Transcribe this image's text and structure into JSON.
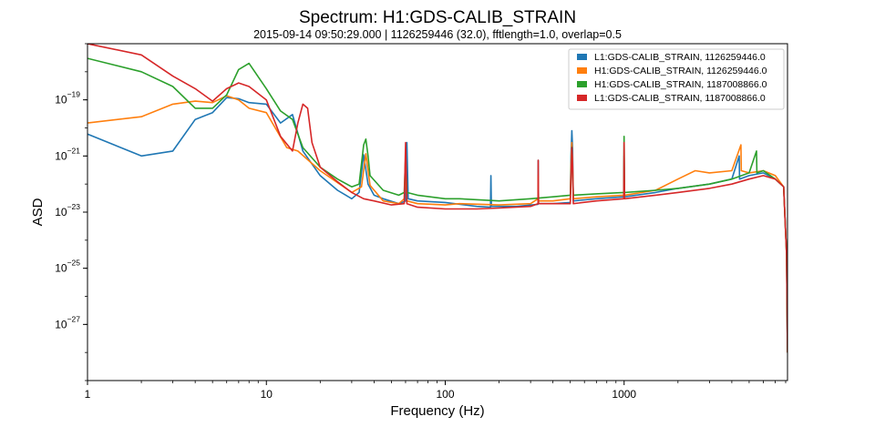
{
  "chart_data": {
    "type": "line",
    "title": "Spectrum: H1:GDS-CALIB_STRAIN",
    "subtitle": "2015-09-14 09:50:29.000 | 1126259446 (32.0), fftlength=1.0, overlap=0.5",
    "xlabel": "Frequency (Hz)",
    "ylabel": "ASD",
    "xscale": "log",
    "yscale": "log",
    "xlim": [
      1,
      8192
    ],
    "ylim": [
      1e-29,
      1e-17
    ],
    "x_ticks": [
      {
        "value": 1,
        "label": "1"
      },
      {
        "value": 10,
        "label": "10"
      },
      {
        "value": 100,
        "label": "100"
      },
      {
        "value": 1000,
        "label": "1000"
      }
    ],
    "y_ticks": [
      {
        "value": 1e-19,
        "base": "10",
        "exp": "−19"
      },
      {
        "value": 1e-21,
        "base": "10",
        "exp": "−21"
      },
      {
        "value": 1e-23,
        "base": "10",
        "exp": "−23"
      },
      {
        "value": 1e-25,
        "base": "10",
        "exp": "−25"
      },
      {
        "value": 1e-27,
        "base": "10",
        "exp": "−27"
      }
    ],
    "legend_position": "top-right",
    "grid": false,
    "series": [
      {
        "name": "L1:GDS-CALIB_STRAIN, 1126259446.0",
        "color": "#1f77b4",
        "points": [
          [
            1,
            6e-21
          ],
          [
            2,
            1e-21
          ],
          [
            3,
            1.5e-21
          ],
          [
            4,
            2e-20
          ],
          [
            5,
            3.5e-20
          ],
          [
            6,
            1.2e-19
          ],
          [
            7,
            1.1e-19
          ],
          [
            8,
            8e-20
          ],
          [
            10,
            7e-20
          ],
          [
            12,
            1.5e-20
          ],
          [
            14,
            3e-20
          ],
          [
            16,
            1.5e-21
          ],
          [
            20,
            2e-22
          ],
          [
            25,
            6e-23
          ],
          [
            30,
            3e-23
          ],
          [
            33,
            5e-23
          ],
          [
            35,
            1.1e-21
          ],
          [
            37,
            1e-22
          ],
          [
            40,
            4e-23
          ],
          [
            45,
            3e-23
          ],
          [
            55,
            2e-23
          ],
          [
            60,
            2.5e-23
          ],
          [
            61,
            3e-21
          ],
          [
            62,
            3e-23
          ],
          [
            70,
            2.5e-23
          ],
          [
            100,
            2.2e-23
          ],
          [
            150,
            1.6e-23
          ],
          [
            179,
            1.5e-23
          ],
          [
            180,
            2e-22
          ],
          [
            181,
            1.6e-23
          ],
          [
            250,
            1.6e-23
          ],
          [
            330,
            1.9e-23
          ],
          [
            331,
            7e-22
          ],
          [
            332,
            2e-23
          ],
          [
            400,
            2e-23
          ],
          [
            500,
            2.2e-23
          ],
          [
            505,
            1e-21
          ],
          [
            510,
            8e-21
          ],
          [
            515,
            2e-21
          ],
          [
            520,
            2.5e-23
          ],
          [
            700,
            3e-23
          ],
          [
            995,
            3.5e-23
          ],
          [
            1000,
            1e-21
          ],
          [
            1005,
            3.5e-23
          ],
          [
            1500,
            5e-23
          ],
          [
            2000,
            7e-23
          ],
          [
            3000,
            1e-22
          ],
          [
            4000,
            1.5e-22
          ],
          [
            4400,
            1e-21
          ],
          [
            4420,
            1.5e-22
          ],
          [
            5000,
            2e-22
          ],
          [
            6000,
            2.5e-22
          ],
          [
            7000,
            1.5e-22
          ],
          [
            7800,
            8e-23
          ],
          [
            8100,
            3e-25
          ],
          [
            8192,
            1e-28
          ]
        ]
      },
      {
        "name": "H1:GDS-CALIB_STRAIN, 1126259446.0",
        "color": "#ff7f0e",
        "points": [
          [
            1,
            1.5e-20
          ],
          [
            2,
            2.5e-20
          ],
          [
            3,
            7e-20
          ],
          [
            4,
            9e-20
          ],
          [
            5,
            8e-20
          ],
          [
            6,
            1.4e-19
          ],
          [
            7,
            1e-19
          ],
          [
            8,
            5e-20
          ],
          [
            10,
            3.5e-20
          ],
          [
            13,
            2e-21
          ],
          [
            15,
            1.5e-21
          ],
          [
            20,
            3e-22
          ],
          [
            30,
            5e-23
          ],
          [
            34,
            8e-23
          ],
          [
            36,
            1.2e-21
          ],
          [
            38,
            9e-23
          ],
          [
            45,
            2.5e-23
          ],
          [
            55,
            2e-23
          ],
          [
            59,
            3e-23
          ],
          [
            60,
            5e-22
          ],
          [
            61,
            2.5e-23
          ],
          [
            70,
            2e-23
          ],
          [
            100,
            1.8e-23
          ],
          [
            120,
            2e-23
          ],
          [
            200,
            1.8e-23
          ],
          [
            300,
            2e-23
          ],
          [
            330,
            3e-23
          ],
          [
            331,
            2e-22
          ],
          [
            332,
            2.5e-23
          ],
          [
            400,
            2.5e-23
          ],
          [
            500,
            3e-23
          ],
          [
            505,
            5e-22
          ],
          [
            510,
            3e-21
          ],
          [
            515,
            6e-22
          ],
          [
            520,
            3e-23
          ],
          [
            700,
            3.5e-23
          ],
          [
            995,
            4e-23
          ],
          [
            1000,
            1.5e-22
          ],
          [
            1005,
            4e-23
          ],
          [
            1500,
            6e-23
          ],
          [
            2000,
            1.5e-22
          ],
          [
            2500,
            3e-22
          ],
          [
            3000,
            2.5e-22
          ],
          [
            4000,
            3e-22
          ],
          [
            4500,
            2.5e-21
          ],
          [
            4520,
            3e-22
          ],
          [
            5000,
            2.5e-22
          ],
          [
            6000,
            3e-22
          ],
          [
            7000,
            2e-22
          ],
          [
            7800,
            8e-23
          ],
          [
            8100,
            3e-25
          ],
          [
            8192,
            1e-28
          ]
        ]
      },
      {
        "name": "H1:GDS-CALIB_STRAIN, 1187008866.0",
        "color": "#2ca02c",
        "points": [
          [
            1,
            3e-18
          ],
          [
            2,
            1e-18
          ],
          [
            3,
            3e-19
          ],
          [
            4,
            5e-20
          ],
          [
            5,
            5e-20
          ],
          [
            6,
            1.5e-19
          ],
          [
            7,
            1.2e-18
          ],
          [
            8,
            2e-18
          ],
          [
            10,
            2.5e-19
          ],
          [
            12,
            4e-20
          ],
          [
            14,
            2e-20
          ],
          [
            16,
            2e-21
          ],
          [
            20,
            4e-22
          ],
          [
            25,
            1.5e-22
          ],
          [
            30,
            8e-23
          ],
          [
            33,
            1e-22
          ],
          [
            35,
            2.5e-21
          ],
          [
            36,
            4e-21
          ],
          [
            37,
            1e-21
          ],
          [
            38,
            2e-22
          ],
          [
            45,
            6e-23
          ],
          [
            55,
            4e-23
          ],
          [
            59,
            5e-23
          ],
          [
            60,
            1e-21
          ],
          [
            61,
            5e-23
          ],
          [
            70,
            4e-23
          ],
          [
            100,
            3e-23
          ],
          [
            120,
            3e-23
          ],
          [
            200,
            2.5e-23
          ],
          [
            300,
            3e-23
          ],
          [
            400,
            3.5e-23
          ],
          [
            500,
            4e-23
          ],
          [
            510,
            2e-21
          ],
          [
            520,
            4e-23
          ],
          [
            700,
            4.5e-23
          ],
          [
            995,
            5e-23
          ],
          [
            1000,
            5e-21
          ],
          [
            1005,
            5e-23
          ],
          [
            1500,
            6e-23
          ],
          [
            2000,
            7e-23
          ],
          [
            3000,
            1e-22
          ],
          [
            4000,
            1.5e-22
          ],
          [
            5000,
            2.5e-22
          ],
          [
            5500,
            1.5e-21
          ],
          [
            5520,
            2.5e-22
          ],
          [
            6000,
            3e-22
          ],
          [
            7000,
            1.5e-22
          ],
          [
            7800,
            8e-23
          ],
          [
            8100,
            3e-25
          ],
          [
            8192,
            1e-28
          ]
        ]
      },
      {
        "name": "L1:GDS-CALIB_STRAIN, 1187008866.0",
        "color": "#d62728",
        "points": [
          [
            1,
            1e-17
          ],
          [
            2,
            4e-18
          ],
          [
            3,
            7e-19
          ],
          [
            4,
            2.5e-19
          ],
          [
            5,
            9e-20
          ],
          [
            6,
            2.5e-19
          ],
          [
            7,
            4e-19
          ],
          [
            8,
            3e-19
          ],
          [
            10,
            1e-19
          ],
          [
            12,
            5e-21
          ],
          [
            14,
            1.5e-21
          ],
          [
            15,
            1.5e-20
          ],
          [
            16,
            7e-20
          ],
          [
            17,
            5e-20
          ],
          [
            18,
            3e-21
          ],
          [
            20,
            4e-22
          ],
          [
            25,
            1.2e-22
          ],
          [
            30,
            5e-23
          ],
          [
            35,
            3e-23
          ],
          [
            40,
            2.5e-23
          ],
          [
            50,
            1.8e-23
          ],
          [
            59,
            2e-23
          ],
          [
            60,
            3e-21
          ],
          [
            61,
            2e-23
          ],
          [
            70,
            1.5e-23
          ],
          [
            100,
            1.3e-23
          ],
          [
            150,
            1.3e-23
          ],
          [
            200,
            1.4e-23
          ],
          [
            300,
            1.6e-23
          ],
          [
            330,
            2e-23
          ],
          [
            331,
            7e-22
          ],
          [
            332,
            2e-23
          ],
          [
            500,
            2e-23
          ],
          [
            505,
            2e-22
          ],
          [
            510,
            2e-21
          ],
          [
            515,
            5e-22
          ],
          [
            520,
            2e-23
          ],
          [
            700,
            2.5e-23
          ],
          [
            995,
            3e-23
          ],
          [
            1000,
            3e-21
          ],
          [
            1005,
            3e-23
          ],
          [
            1500,
            4e-23
          ],
          [
            2000,
            5e-23
          ],
          [
            3000,
            7e-23
          ],
          [
            4000,
            1e-22
          ],
          [
            5000,
            1.5e-22
          ],
          [
            6000,
            2e-22
          ],
          [
            7000,
            1.5e-22
          ],
          [
            7800,
            8e-23
          ],
          [
            8100,
            3e-25
          ],
          [
            8192,
            1e-28
          ]
        ]
      }
    ]
  }
}
